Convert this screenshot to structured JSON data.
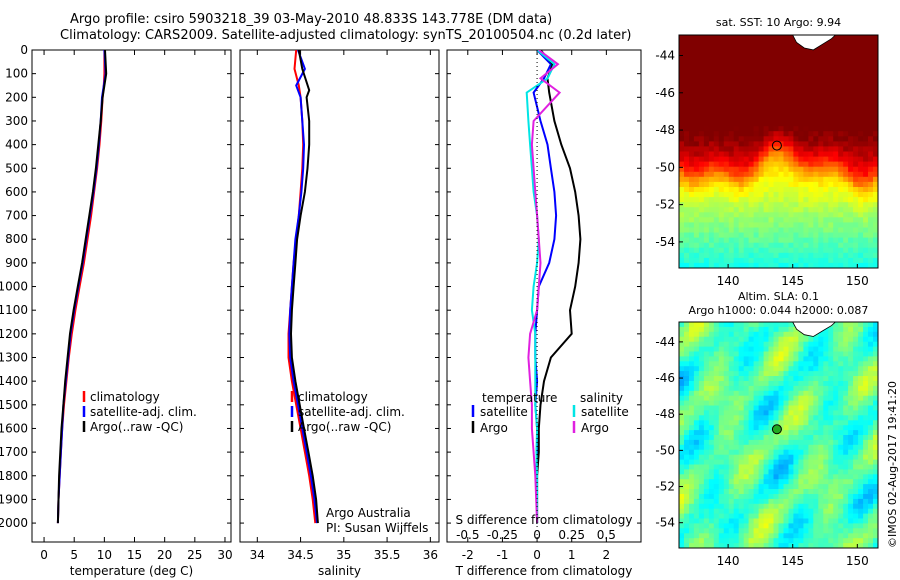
{
  "header": {
    "line1": "Argo profile: csiro 5903218_39 03-May-2010 48.833S 143.778E (DM data)",
    "line2": "Climatology: CARS2009. Satellite-adjusted climatology: synTS_20100504.nc (0.2d later)"
  },
  "credit": "Argo Australia",
  "pi": "PI: Susan Wijffels",
  "vertical_stamp": "©IMOS 02-Aug-2017 19:41:20",
  "colors": {
    "climatology": "#ff0000",
    "satellite": "#0000ff",
    "argo": "#000000",
    "sal_satellite": "#00e5e5",
    "sal_argo": "#e020e0"
  },
  "chart_data": [
    {
      "type": "line",
      "xlabel": "temperature (deg C)",
      "ylabel": "",
      "xlim": [
        -2,
        31
      ],
      "ylim": [
        2080,
        0
      ],
      "xticks": [
        "0",
        "5",
        "10",
        "15",
        "20",
        "25",
        "30"
      ],
      "xtick_values": [
        0,
        5,
        10,
        15,
        20,
        25,
        30
      ],
      "yticks": [
        "0",
        "100",
        "200",
        "300",
        "400",
        "500",
        "600",
        "700",
        "800",
        "900",
        "1000",
        "1100",
        "1200",
        "1300",
        "1400",
        "1500",
        "1600",
        "1700",
        "1800",
        "1900",
        "2000"
      ],
      "ytick_values": [
        0,
        100,
        200,
        300,
        400,
        500,
        600,
        700,
        800,
        900,
        1000,
        1100,
        1200,
        1300,
        1400,
        1500,
        1600,
        1700,
        1800,
        1900,
        2000
      ],
      "legend": [
        "climatology",
        "satellite-adj. clim.",
        "Argo(..raw -QC)"
      ],
      "legend_position": "center-right",
      "series": [
        {
          "name": "climatology",
          "color": "#ff0000",
          "x": [
            10.0,
            10.0,
            9.9,
            9.7,
            9.5,
            9.2,
            8.8,
            8.3,
            7.8,
            7.2,
            6.6,
            5.9,
            5.2,
            4.6,
            4.1,
            3.7,
            3.3,
            3.0,
            2.8,
            2.6,
            2.4,
            2.3
          ],
          "y": [
            0,
            100,
            150,
            200,
            300,
            400,
            500,
            600,
            700,
            800,
            900,
            1000,
            1100,
            1200,
            1300,
            1400,
            1500,
            1600,
            1700,
            1800,
            1900,
            2000
          ]
        },
        {
          "name": "satellite-adj. clim.",
          "color": "#0000ff",
          "x": [
            10.0,
            10.2,
            9.9,
            9.6,
            9.4,
            9.1,
            8.7,
            8.2,
            7.6,
            7.0,
            6.4,
            5.7,
            5.0,
            4.4,
            4.0,
            3.6,
            3.2,
            3.0,
            2.8,
            2.6,
            2.4,
            2.3
          ],
          "y": [
            0,
            100,
            150,
            200,
            300,
            400,
            500,
            600,
            700,
            800,
            900,
            1000,
            1100,
            1200,
            1300,
            1400,
            1500,
            1600,
            1700,
            1800,
            1900,
            2000
          ]
        },
        {
          "name": "Argo(..raw -QC)",
          "color": "#000000",
          "x": [
            10.1,
            10.3,
            10.0,
            9.7,
            9.4,
            9.0,
            8.6,
            8.1,
            7.5,
            6.9,
            6.3,
            5.6,
            4.9,
            4.3,
            3.9,
            3.5,
            3.2,
            2.9,
            2.7,
            2.5,
            2.4,
            2.3
          ],
          "y": [
            0,
            100,
            150,
            200,
            300,
            400,
            500,
            600,
            700,
            800,
            900,
            1000,
            1100,
            1200,
            1300,
            1400,
            1500,
            1600,
            1700,
            1800,
            1900,
            2000
          ]
        }
      ]
    },
    {
      "type": "line",
      "xlabel": "salinity",
      "xlim": [
        33.8,
        36.1
      ],
      "ylim": [
        2080,
        0
      ],
      "xticks": [
        "34",
        "34.5",
        "35",
        "35.5",
        "36"
      ],
      "xtick_values": [
        34,
        34.5,
        35,
        35.5,
        36
      ],
      "legend": [
        "climatology",
        "satellite-adj. clim.",
        "Argo(..raw -QC)"
      ],
      "legend_position": "center-right",
      "series": [
        {
          "name": "climatology",
          "color": "#ff0000",
          "x": [
            34.45,
            34.43,
            34.48,
            34.5,
            34.52,
            34.53,
            34.52,
            34.5,
            34.48,
            34.45,
            34.42,
            34.4,
            34.38,
            34.36,
            34.36,
            34.4,
            34.45,
            34.5,
            34.55,
            34.6,
            34.64,
            34.67
          ],
          "y": [
            0,
            80,
            150,
            200,
            300,
            400,
            500,
            600,
            700,
            800,
            900,
            1000,
            1100,
            1200,
            1300,
            1400,
            1500,
            1600,
            1700,
            1800,
            1900,
            2000
          ]
        },
        {
          "name": "satellite-adj. clim.",
          "color": "#0000ff",
          "x": [
            34.47,
            34.55,
            34.45,
            34.5,
            34.52,
            34.54,
            34.53,
            34.51,
            34.48,
            34.44,
            34.42,
            34.4,
            34.38,
            34.37,
            34.38,
            34.42,
            34.47,
            34.52,
            34.57,
            34.62,
            34.66,
            34.69
          ],
          "y": [
            0,
            80,
            150,
            200,
            300,
            400,
            500,
            600,
            700,
            800,
            900,
            1000,
            1100,
            1200,
            1300,
            1400,
            1500,
            1600,
            1700,
            1800,
            1900,
            2000
          ]
        },
        {
          "name": "Argo(..raw -QC)",
          "color": "#000000",
          "x": [
            34.48,
            34.52,
            34.6,
            34.57,
            34.6,
            34.6,
            34.58,
            34.55,
            34.5,
            34.46,
            34.44,
            34.42,
            34.4,
            34.39,
            34.4,
            34.44,
            34.49,
            34.54,
            34.59,
            34.64,
            34.68,
            34.7
          ],
          "y": [
            0,
            80,
            170,
            200,
            300,
            400,
            500,
            600,
            700,
            800,
            900,
            1000,
            1100,
            1200,
            1300,
            1400,
            1500,
            1600,
            1700,
            1800,
            1900,
            2000
          ]
        }
      ],
      "annotations": [
        "Argo Australia",
        "PI: Susan Wijffels"
      ]
    },
    {
      "type": "line",
      "xlabel": "T difference from climatology",
      "xlabel_top": "S difference from climatology",
      "xlim": [
        -2.6,
        3.0
      ],
      "ylim": [
        2080,
        0
      ],
      "xticks": [
        "-2",
        "-1",
        "0",
        "1",
        "2"
      ],
      "xtick_values": [
        -2,
        -1,
        0,
        1,
        2
      ],
      "sticks": [
        "-0.5",
        "-0.25",
        "0",
        "0.25",
        "0.5"
      ],
      "stick_values": [
        -0.5,
        -0.25,
        0,
        0.25,
        0.5
      ],
      "legend_temperature_title": "temperature",
      "legend_salinity_title": "salinity",
      "legend_temperature": [
        "satellite",
        "Argo"
      ],
      "legend_salinity": [
        "satellite",
        "Argo"
      ],
      "series": [
        {
          "name": "satellite",
          "color": "#0000ff",
          "x": [
            0.0,
            0.4,
            0.2,
            -0.1,
            0.1,
            0.3,
            0.4,
            0.5,
            0.55,
            0.5,
            0.35,
            0.05,
            0.0,
            -0.05,
            -0.05,
            0.0,
            -0.05,
            0.0,
            0.0,
            -0.02,
            0.0
          ],
          "y": [
            0,
            60,
            120,
            180,
            300,
            400,
            500,
            600,
            700,
            800,
            900,
            1000,
            1100,
            1200,
            1300,
            1400,
            1500,
            1600,
            1700,
            1800,
            2000
          ]
        },
        {
          "name": "Argo",
          "color": "#000000",
          "x": [
            0.1,
            0.45,
            0.3,
            0.35,
            0.5,
            0.7,
            0.95,
            1.1,
            1.2,
            1.25,
            1.2,
            1.1,
            0.95,
            1.0,
            0.4,
            0.2,
            0.1,
            0.05,
            0.05,
            0.0,
            0.0
          ],
          "y": [
            0,
            60,
            120,
            180,
            300,
            400,
            500,
            600,
            700,
            800,
            900,
            1000,
            1100,
            1200,
            1300,
            1400,
            1500,
            1600,
            1700,
            1800,
            2000
          ]
        },
        {
          "name": "salinity satellite",
          "color": "#00e5e5",
          "x": [
            0.0,
            0.5,
            0.3,
            -0.3,
            -0.25,
            -0.2,
            -0.15,
            -0.1,
            0.0,
            0.05,
            0.0,
            -0.1,
            -0.15,
            -0.05,
            -0.05,
            -0.05,
            -0.05,
            0.0,
            -0.02,
            0.0,
            0.0
          ],
          "y": [
            0,
            60,
            120,
            180,
            300,
            400,
            500,
            600,
            700,
            800,
            900,
            1000,
            1100,
            1200,
            1300,
            1400,
            1500,
            1600,
            1700,
            1800,
            2000
          ]
        },
        {
          "name": "salinity Argo",
          "color": "#e020e0",
          "x": [
            0.05,
            0.6,
            0.1,
            0.65,
            -0.1,
            -0.15,
            -0.1,
            -0.05,
            0.0,
            0.05,
            0.1,
            0.05,
            0.0,
            -0.2,
            -0.25,
            -0.2,
            -0.15,
            -0.15,
            -0.1,
            -0.05,
            0.0
          ],
          "y": [
            0,
            60,
            120,
            180,
            300,
            400,
            500,
            600,
            700,
            800,
            900,
            1000,
            1100,
            1200,
            1300,
            1400,
            1500,
            1600,
            1700,
            1800,
            2000
          ]
        }
      ]
    },
    {
      "type": "heatmap",
      "title": "sat. SST: 10 Argo: 9.94",
      "xticks": [
        "140",
        "145",
        "150"
      ],
      "xtick_values": [
        140,
        145,
        150
      ],
      "yticks": [
        "-44",
        "-46",
        "-48",
        "-50",
        "-52",
        "-54"
      ],
      "ytick_values": [
        -44,
        -46,
        -48,
        -50,
        -52,
        -54
      ],
      "xlim": [
        136.2,
        151.6
      ],
      "ylim": [
        -55.4,
        -42.9
      ],
      "marker": {
        "lon": 143.778,
        "lat": -48.833
      }
    },
    {
      "type": "heatmap",
      "title": "Altim. SLA: 0.1",
      "subtitle": "Argo h1000: 0.044 h2000: 0.087",
      "xticks": [
        "140",
        "145",
        "150"
      ],
      "xtick_values": [
        140,
        145,
        150
      ],
      "yticks": [
        "-44",
        "-46",
        "-48",
        "-50",
        "-52",
        "-54"
      ],
      "ytick_values": [
        -44,
        -46,
        -48,
        -50,
        -52,
        -54
      ],
      "xlim": [
        136.2,
        151.6
      ],
      "ylim": [
        -55.4,
        -42.9
      ],
      "marker": {
        "lon": 143.778,
        "lat": -48.833
      }
    }
  ]
}
